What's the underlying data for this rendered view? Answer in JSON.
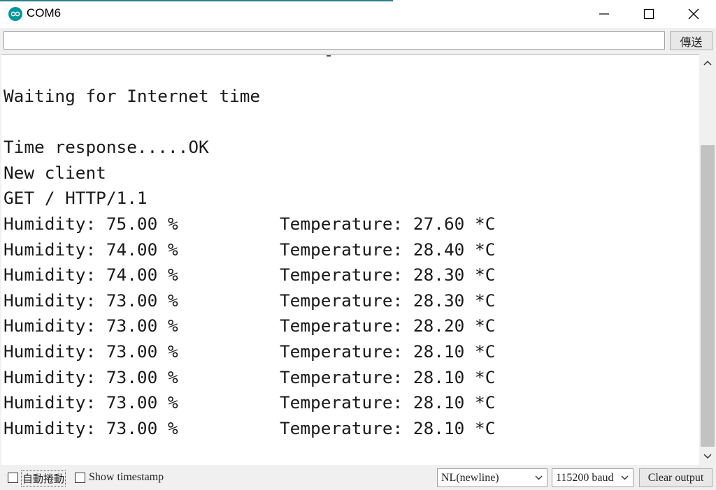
{
  "window": {
    "title": "COM6",
    "icon": "arduino-logo-icon",
    "controls": [
      "minimize-icon",
      "maximize-icon",
      "close-icon"
    ]
  },
  "send": {
    "input_value": "",
    "button_label": "傳送"
  },
  "output": {
    "lines": [
      {
        "text": "Waiting for Internet time",
        "right": ""
      },
      {
        "text": "",
        "right": ""
      },
      {
        "text": "Time response.....OK",
        "right": ""
      },
      {
        "text": "New client",
        "right": ""
      },
      {
        "text": "GET / HTTP/1.1",
        "right": ""
      },
      {
        "text": "Humidity: 75.00 %",
        "right": "Temperature: 27.60 *C"
      },
      {
        "text": "Humidity: 74.00 %",
        "right": "Temperature: 28.40 *C"
      },
      {
        "text": "Humidity: 74.00 %",
        "right": "Temperature: 28.30 *C"
      },
      {
        "text": "Humidity: 73.00 %",
        "right": "Temperature: 28.30 *C"
      },
      {
        "text": "Humidity: 73.00 %",
        "right": "Temperature: 28.20 *C"
      },
      {
        "text": "Humidity: 73.00 %",
        "right": "Temperature: 28.10 *C"
      },
      {
        "text": "Humidity: 73.00 %",
        "right": "Temperature: 28.10 *C"
      },
      {
        "text": "Humidity: 73.00 %",
        "right": "Temperature: 28.10 *C"
      },
      {
        "text": "Humidity: 73.00 %",
        "right": "Temperature: 28.10 *C"
      }
    ]
  },
  "bottom": {
    "autoscroll_label": "自動捲動",
    "autoscroll_checked": false,
    "timestamp_label": "Show timestamp",
    "timestamp_checked": false,
    "line_ending": "NL(newline)",
    "baud_rate": "115200 baud",
    "clear_label": "Clear output"
  },
  "colors": {
    "accent": "#00979c",
    "background": "#f0f0f0",
    "text": "#1a1a1a"
  }
}
